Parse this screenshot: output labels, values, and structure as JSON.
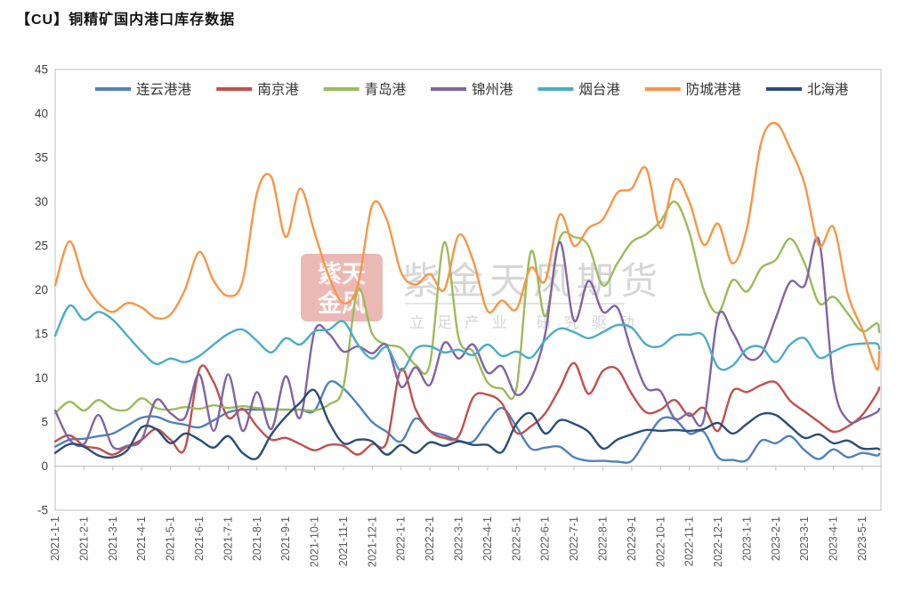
{
  "title": "【CU】铜精矿国内港口库存数据",
  "watermark": {
    "seal_rows": [
      "紫天",
      "金风"
    ],
    "seal_color": "#cd4a3d",
    "brand": "紫金天风期货",
    "slogan": "立足产业 研究驱动",
    "text_color": "#bfbfbf"
  },
  "chart_data": {
    "type": "line",
    "title": "【CU】铜精矿国内港口库存数据",
    "ylabel": "",
    "xlabel": "",
    "ylim": [
      -5,
      45
    ],
    "y_ticks": [
      45,
      40,
      35,
      30,
      25,
      20,
      15,
      10,
      5,
      0,
      -5
    ],
    "grid": false,
    "legend_position": "top",
    "x_tick_labels": [
      "2021-1-1",
      "2021-2-1",
      "2021-3-1",
      "2021-4-1",
      "2021-5-1",
      "2021-6-1",
      "2021-7-1",
      "2021-8-1",
      "2021-9-1",
      "2021-10-1",
      "2021-11-1",
      "2021-12-1",
      "2022-1-1",
      "2022-2-1",
      "2022-3-1",
      "2022-4-1",
      "2022-5-1",
      "2022-6-1",
      "2022-7-1",
      "2022-8-1",
      "2022-9-1",
      "2022-10-1",
      "2022-11-1",
      "2022-12-1",
      "2023-1-1",
      "2023-2-1",
      "2023-3-1",
      "2023-4-1",
      "2023-5-1"
    ],
    "x_sample_dates": [
      "2021-1-1",
      "2021-1-16",
      "2021-2-1",
      "2021-2-16",
      "2021-3-1",
      "2021-3-16",
      "2021-4-1",
      "2021-4-16",
      "2021-5-1",
      "2021-5-16",
      "2021-6-1",
      "2021-6-16",
      "2021-7-1",
      "2021-7-16",
      "2021-8-1",
      "2021-8-16",
      "2021-9-1",
      "2021-9-16",
      "2021-10-1",
      "2021-10-16",
      "2021-11-1",
      "2021-11-16",
      "2021-12-1",
      "2021-12-16",
      "2022-1-1",
      "2022-1-16",
      "2022-2-1",
      "2022-2-16",
      "2022-3-1",
      "2022-3-16",
      "2022-4-1",
      "2022-4-16",
      "2022-5-1",
      "2022-5-16",
      "2022-6-1",
      "2022-6-16",
      "2022-7-1",
      "2022-7-16",
      "2022-8-1",
      "2022-8-16",
      "2022-9-1",
      "2022-9-16",
      "2022-10-1",
      "2022-10-16",
      "2022-11-1",
      "2022-11-16",
      "2022-12-1",
      "2022-12-16",
      "2023-1-1",
      "2023-1-16",
      "2023-2-1",
      "2023-2-16",
      "2023-3-1",
      "2023-3-16",
      "2023-4-1",
      "2023-4-16",
      "2023-5-1",
      "2023-5-16",
      "2023-5-26"
    ],
    "series": [
      {
        "name": "连云港港",
        "color": "#4F81BD",
        "values": [
          2.2,
          3.0,
          3.1,
          3.4,
          3.7,
          4.6,
          5.5,
          5.6,
          5.0,
          4.7,
          4.4,
          5.2,
          6.1,
          6.4,
          6.4,
          6.4,
          6.4,
          6.4,
          6.3,
          9.5,
          8.8,
          7.0,
          5.0,
          3.9,
          2.8,
          5.4,
          4.0,
          3.5,
          2.9,
          2.8,
          5.0,
          6.6,
          4.5,
          2.0,
          2.1,
          2.2,
          1.0,
          0.6,
          0.6,
          0.5,
          0.6,
          3.0,
          5.3,
          5.3,
          3.7,
          3.9,
          1.0,
          0.7,
          0.7,
          2.9,
          2.6,
          3.4,
          1.8,
          0.8,
          1.9,
          1.0,
          1.5,
          1.2,
          1.4
        ]
      },
      {
        "name": "南京港",
        "color": "#C0504D",
        "values": [
          2.8,
          3.5,
          2.3,
          2.0,
          1.3,
          2.2,
          3.0,
          4.2,
          3.0,
          2.0,
          11.0,
          9.5,
          5.5,
          6.5,
          4.5,
          3.0,
          3.2,
          2.5,
          1.8,
          2.4,
          2.3,
          1.3,
          2.5,
          2.7,
          11.0,
          6.5,
          4.0,
          3.2,
          3.4,
          7.8,
          8.1,
          7.1,
          3.8,
          4.5,
          6.0,
          8.8,
          11.7,
          8.2,
          10.8,
          11.0,
          8.2,
          6.1,
          6.4,
          7.5,
          5.7,
          6.6,
          4.0,
          8.5,
          8.4,
          9.2,
          9.5,
          7.4,
          6.2,
          5.0,
          3.9,
          4.5,
          5.8,
          8.2,
          8.9
        ]
      },
      {
        "name": "青岛港",
        "color": "#9BBB59",
        "values": [
          6.0,
          7.3,
          6.3,
          7.5,
          6.5,
          6.4,
          7.7,
          6.6,
          6.4,
          6.7,
          6.5,
          6.9,
          6.6,
          6.8,
          6.6,
          6.5,
          6.4,
          6.4,
          6.3,
          7.0,
          9.0,
          20.0,
          15.0,
          13.8,
          13.4,
          11.5,
          11.6,
          25.4,
          14.5,
          13.0,
          9.5,
          8.8,
          8.8,
          24.3,
          17.0,
          25.8,
          26.0,
          25.0,
          20.5,
          23.0,
          25.4,
          26.3,
          27.8,
          30.0,
          26.5,
          20.0,
          17.4,
          21.1,
          19.8,
          22.5,
          23.4,
          25.8,
          23.0,
          18.5,
          19.2,
          17.3,
          15.3,
          16.2,
          15.2
        ]
      },
      {
        "name": "锦州港",
        "color": "#8064A2",
        "values": [
          6.3,
          3.0,
          2.5,
          5.8,
          2.2,
          2.3,
          3.0,
          7.5,
          6.0,
          5.5,
          10.4,
          4.0,
          10.4,
          4.0,
          8.4,
          4.2,
          10.2,
          5.5,
          15.3,
          15.0,
          13.0,
          13.6,
          12.8,
          13.7,
          9.0,
          11.2,
          9.2,
          14.0,
          12.2,
          13.8,
          10.6,
          11.3,
          8.1,
          9.8,
          15.0,
          25.4,
          16.5,
          21.0,
          17.5,
          18.0,
          13.0,
          8.9,
          8.5,
          5.4,
          6.0,
          5.2,
          17.0,
          15.2,
          12.3,
          12.7,
          16.8,
          20.9,
          20.5,
          25.6,
          9.5,
          5.2,
          5.4,
          6.1,
          6.5
        ]
      },
      {
        "name": "烟台港",
        "color": "#4BACC6",
        "values": [
          14.8,
          18.2,
          16.6,
          17.5,
          16.6,
          14.8,
          13.0,
          11.6,
          12.2,
          11.8,
          12.5,
          13.8,
          15.0,
          15.5,
          14.2,
          12.9,
          14.5,
          13.8,
          15.3,
          15.5,
          16.4,
          13.8,
          12.2,
          13.5,
          10.8,
          13.3,
          13.6,
          12.9,
          13.2,
          12.6,
          13.8,
          12.5,
          13.0,
          12.3,
          14.3,
          15.6,
          15.2,
          14.5,
          15.2,
          16.0,
          15.7,
          13.8,
          13.6,
          14.8,
          14.9,
          14.8,
          11.2,
          11.4,
          13.3,
          13.5,
          11.8,
          13.8,
          14.5,
          12.3,
          13.0,
          13.7,
          13.9,
          13.9,
          13.3
        ]
      },
      {
        "name": "防城港港",
        "color": "#F79646",
        "values": [
          20.5,
          25.5,
          21.0,
          18.5,
          17.5,
          18.5,
          18.0,
          16.8,
          17.2,
          20.0,
          24.3,
          21.0,
          19.3,
          21.0,
          31.0,
          32.8,
          26.0,
          31.5,
          26.5,
          21.5,
          18.5,
          20.5,
          29.6,
          28.0,
          22.0,
          20.6,
          21.8,
          20.0,
          26.2,
          23.3,
          17.6,
          18.8,
          17.8,
          22.5,
          21.0,
          28.5,
          25.0,
          27.0,
          28.0,
          31.0,
          31.5,
          33.8,
          27.0,
          32.5,
          30.0,
          25.1,
          27.5,
          23.0,
          27.0,
          36.8,
          38.9,
          36.0,
          32.0,
          25.0,
          27.1,
          19.5,
          15.5,
          11.0,
          13.0
        ]
      },
      {
        "name": "北海港",
        "color": "#2C4D75",
        "values": [
          1.5,
          2.5,
          2.2,
          1.2,
          1.0,
          1.8,
          4.4,
          4.2,
          2.6,
          3.7,
          3.0,
          2.1,
          3.4,
          1.5,
          0.9,
          3.6,
          5.6,
          7.2,
          8.6,
          5.0,
          2.6,
          3.0,
          2.8,
          1.3,
          2.4,
          1.5,
          2.7,
          2.3,
          2.8,
          2.4,
          2.4,
          1.6,
          4.8,
          6.0,
          3.7,
          5.2,
          4.8,
          3.9,
          2.0,
          3.0,
          3.6,
          4.1,
          4.0,
          4.1,
          4.0,
          4.2,
          4.9,
          3.7,
          4.8,
          5.9,
          5.8,
          4.5,
          3.2,
          3.6,
          2.6,
          2.9,
          2.0,
          2.0,
          1.9
        ]
      }
    ]
  }
}
